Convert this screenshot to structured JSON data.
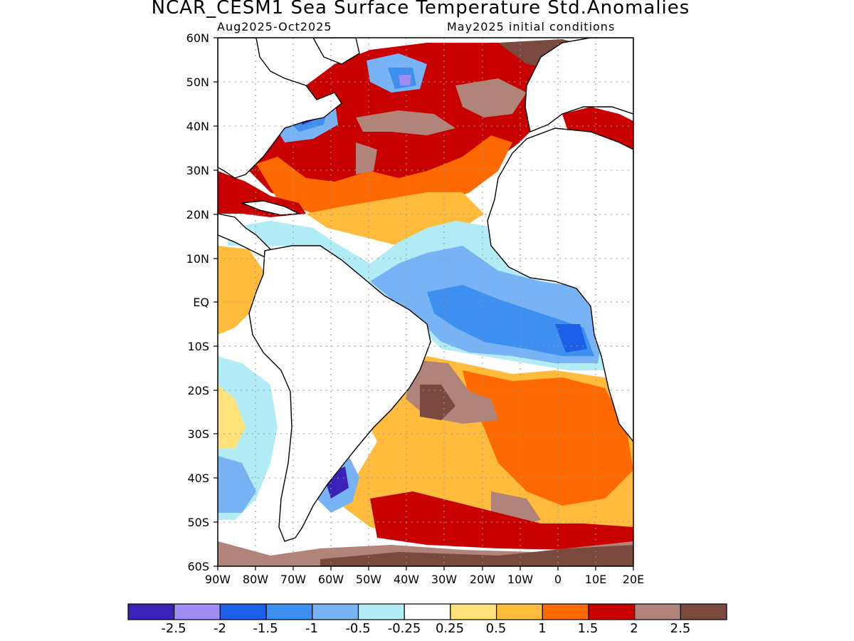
{
  "title": "NCAR_CESM1 Sea Surface Temperature Std.Anomalies",
  "subtitle_left": "Aug2025-Oct2025",
  "subtitle_right": "May2025 initial conditions",
  "lat_labels": [
    "60N",
    "50N",
    "40N",
    "30N",
    "20N",
    "10N",
    "EQ",
    "10S",
    "20S",
    "30S",
    "40S",
    "50S",
    "60S"
  ],
  "lon_labels": [
    "90W",
    "80W",
    "70W",
    "60W",
    "50W",
    "40W",
    "30W",
    "20W",
    "10W",
    "0",
    "10E",
    "20E"
  ],
  "colorbar": {
    "colors": [
      "#3a22b8",
      "#a08cf5",
      "#1e5fe8",
      "#3d8ff0",
      "#78b4f5",
      "#b2ecf7",
      "#ffffff",
      "#ffe27a",
      "#ffbb3c",
      "#ff6a00",
      "#c80000",
      "#b08478",
      "#7a4a3e"
    ],
    "labels": [
      "-2.5",
      "-2",
      "-1.5",
      "-1",
      "-0.5",
      "-0.25",
      "0.25",
      "0.5",
      "1",
      "1.5",
      "2",
      "2.5"
    ]
  }
}
